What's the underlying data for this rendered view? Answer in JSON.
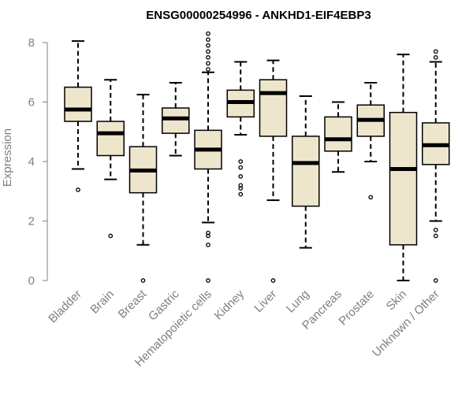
{
  "chart_data": {
    "type": "boxplot",
    "title": "ENSG00000254996 - ANKHD1-EIF4EBP3",
    "xlabel": "",
    "ylabel": "Expression",
    "ylim": [
      0,
      8
    ],
    "yticks": [
      "0",
      "2",
      "4",
      "6",
      "8"
    ],
    "box_fill": "#ede6cc",
    "median_color": "#000000",
    "categories": [
      "Bladder",
      "Brain",
      "Breast",
      "Gastric",
      "Hematopoietic cells",
      "Kidney",
      "Liver",
      "Lung",
      "Pancreas",
      "Prostate",
      "Skin",
      "Unknown / Other"
    ],
    "boxes": [
      {
        "name": "Bladder",
        "whisker_low": 3.75,
        "q1": 5.35,
        "median": 5.75,
        "q3": 6.5,
        "whisker_high": 8.05,
        "outliers": [
          3.05
        ]
      },
      {
        "name": "Brain",
        "whisker_low": 3.4,
        "q1": 4.2,
        "median": 4.95,
        "q3": 5.35,
        "whisker_high": 6.75,
        "outliers": [
          1.5
        ]
      },
      {
        "name": "Breast",
        "whisker_low": 1.2,
        "q1": 2.95,
        "median": 3.7,
        "q3": 4.5,
        "whisker_high": 6.25,
        "outliers": [
          0
        ]
      },
      {
        "name": "Gastric",
        "whisker_low": 4.2,
        "q1": 4.95,
        "median": 5.45,
        "q3": 5.8,
        "whisker_high": 6.65,
        "outliers": []
      },
      {
        "name": "Hematopoietic cells",
        "whisker_low": 1.95,
        "q1": 3.75,
        "median": 4.4,
        "q3": 5.05,
        "whisker_high": 7.0,
        "outliers": [
          0,
          1.2,
          1.5,
          1.6,
          7.1,
          7.3,
          7.5,
          7.7,
          7.9,
          8.1,
          8.3
        ]
      },
      {
        "name": "Kidney",
        "whisker_low": 4.9,
        "q1": 5.5,
        "median": 6.0,
        "q3": 6.4,
        "whisker_high": 7.35,
        "outliers": [
          2.9,
          3.1,
          3.2,
          3.5,
          3.8,
          4.0
        ]
      },
      {
        "name": "Liver",
        "whisker_low": 2.7,
        "q1": 4.85,
        "median": 6.3,
        "q3": 6.75,
        "whisker_high": 7.4,
        "outliers": [
          0
        ]
      },
      {
        "name": "Lung",
        "whisker_low": 1.1,
        "q1": 2.5,
        "median": 3.95,
        "q3": 4.85,
        "whisker_high": 6.2,
        "outliers": []
      },
      {
        "name": "Pancreas",
        "whisker_low": 3.65,
        "q1": 4.35,
        "median": 4.75,
        "q3": 5.5,
        "whisker_high": 6.0,
        "outliers": []
      },
      {
        "name": "Prostate",
        "whisker_low": 4.0,
        "q1": 4.85,
        "median": 5.4,
        "q3": 5.9,
        "whisker_high": 6.65,
        "outliers": [
          2.8
        ]
      },
      {
        "name": "Skin",
        "whisker_low": 0.0,
        "q1": 1.2,
        "median": 3.75,
        "q3": 5.65,
        "whisker_high": 7.6,
        "outliers": []
      },
      {
        "name": "Unknown / Other",
        "whisker_low": 2.0,
        "q1": 3.9,
        "median": 4.55,
        "q3": 5.3,
        "whisker_high": 7.35,
        "outliers": [
          0,
          1.5,
          1.7,
          7.5,
          7.7
        ]
      }
    ]
  }
}
